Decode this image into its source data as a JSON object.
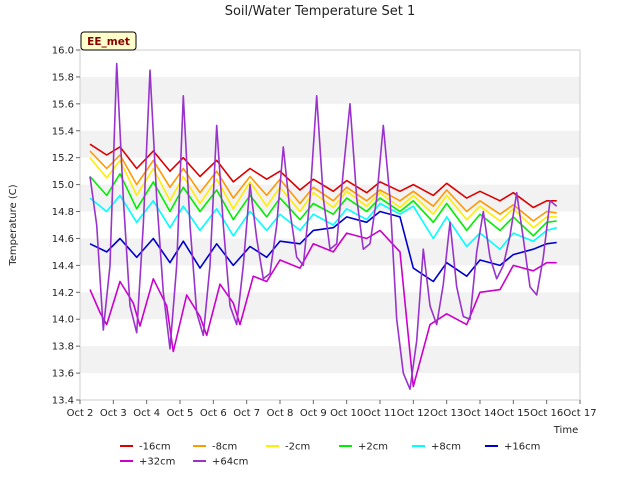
{
  "chart_data": {
    "type": "line",
    "title": "Soil/Water Temperature Set 1",
    "xlabel": "Time",
    "ylabel": "Temperature (C)",
    "annotation": "EE_met",
    "ylim": [
      13.4,
      16.0
    ],
    "xlim": [
      0,
      15
    ],
    "yticks": [
      13.4,
      13.6,
      13.8,
      14.0,
      14.2,
      14.4,
      14.6,
      14.8,
      15.0,
      15.2,
      15.4,
      15.6,
      15.8,
      16.0
    ],
    "xticks": [
      {
        "x": 0,
        "label": "Oct 2"
      },
      {
        "x": 1,
        "label": "Oct 3"
      },
      {
        "x": 2,
        "label": "Oct 4"
      },
      {
        "x": 3,
        "label": "Oct 5"
      },
      {
        "x": 4,
        "label": "Oct 6"
      },
      {
        "x": 5,
        "label": "Oct 7"
      },
      {
        "x": 6,
        "label": "Oct 8"
      },
      {
        "x": 7,
        "label": "Oct 9"
      },
      {
        "x": 8,
        "label": "Oct 10"
      },
      {
        "x": 9,
        "label": "Oct 11"
      },
      {
        "x": 10,
        "label": "Oct 12"
      },
      {
        "x": 11,
        "label": "Oct 13"
      },
      {
        "x": 12,
        "label": "Oct 14"
      },
      {
        "x": 13,
        "label": "Oct 15"
      },
      {
        "x": 14,
        "label": "Oct 16"
      },
      {
        "x": 15,
        "label": "Oct 17"
      }
    ],
    "grid": "horizontal bands",
    "legend_position": "bottom",
    "series": [
      {
        "name": "-16cm",
        "color": "#dd0000",
        "points": [
          [
            0.3,
            15.3
          ],
          [
            0.8,
            15.22
          ],
          [
            1.2,
            15.28
          ],
          [
            1.7,
            15.12
          ],
          [
            2.2,
            15.25
          ],
          [
            2.7,
            15.1
          ],
          [
            3.1,
            15.2
          ],
          [
            3.6,
            15.06
          ],
          [
            4.1,
            15.18
          ],
          [
            4.6,
            15.02
          ],
          [
            5.1,
            15.12
          ],
          [
            5.6,
            15.04
          ],
          [
            6.0,
            15.1
          ],
          [
            6.6,
            14.96
          ],
          [
            7.0,
            15.04
          ],
          [
            7.6,
            14.95
          ],
          [
            8.0,
            15.03
          ],
          [
            8.6,
            14.94
          ],
          [
            9.0,
            15.02
          ],
          [
            9.6,
            14.95
          ],
          [
            10.0,
            15.0
          ],
          [
            10.6,
            14.92
          ],
          [
            11.0,
            15.01
          ],
          [
            11.6,
            14.9
          ],
          [
            12.0,
            14.95
          ],
          [
            12.6,
            14.88
          ],
          [
            13.0,
            14.94
          ],
          [
            13.6,
            14.83
          ],
          [
            14.0,
            14.88
          ],
          [
            14.3,
            14.88
          ]
        ]
      },
      {
        "name": "-8cm",
        "color": "#ff9900",
        "points": [
          [
            0.3,
            15.25
          ],
          [
            0.8,
            15.12
          ],
          [
            1.2,
            15.22
          ],
          [
            1.7,
            15.0
          ],
          [
            2.2,
            15.18
          ],
          [
            2.7,
            14.98
          ],
          [
            3.1,
            15.12
          ],
          [
            3.6,
            14.94
          ],
          [
            4.1,
            15.1
          ],
          [
            4.6,
            14.9
          ],
          [
            5.1,
            15.06
          ],
          [
            5.6,
            14.92
          ],
          [
            6.0,
            15.04
          ],
          [
            6.6,
            14.86
          ],
          [
            7.0,
            14.98
          ],
          [
            7.6,
            14.88
          ],
          [
            8.0,
            14.98
          ],
          [
            8.6,
            14.88
          ],
          [
            9.0,
            14.96
          ],
          [
            9.6,
            14.88
          ],
          [
            10.0,
            14.95
          ],
          [
            10.6,
            14.84
          ],
          [
            11.0,
            14.96
          ],
          [
            11.6,
            14.8
          ],
          [
            12.0,
            14.88
          ],
          [
            12.6,
            14.78
          ],
          [
            13.0,
            14.85
          ],
          [
            13.6,
            14.73
          ],
          [
            14.0,
            14.8
          ],
          [
            14.3,
            14.79
          ]
        ]
      },
      {
        "name": "-2cm",
        "color": "#ffee00",
        "points": [
          [
            0.3,
            15.2
          ],
          [
            0.8,
            15.05
          ],
          [
            1.2,
            15.18
          ],
          [
            1.7,
            14.92
          ],
          [
            2.2,
            15.12
          ],
          [
            2.7,
            14.88
          ],
          [
            3.1,
            15.06
          ],
          [
            3.6,
            14.86
          ],
          [
            4.1,
            15.04
          ],
          [
            4.6,
            14.82
          ],
          [
            5.1,
            15.02
          ],
          [
            5.6,
            14.84
          ],
          [
            6.0,
            14.98
          ],
          [
            6.6,
            14.8
          ],
          [
            7.0,
            14.94
          ],
          [
            7.6,
            14.83
          ],
          [
            8.0,
            14.95
          ],
          [
            8.6,
            14.84
          ],
          [
            9.0,
            14.94
          ],
          [
            9.6,
            14.83
          ],
          [
            10.0,
            14.92
          ],
          [
            10.6,
            14.78
          ],
          [
            11.0,
            14.92
          ],
          [
            11.6,
            14.74
          ],
          [
            12.0,
            14.84
          ],
          [
            12.6,
            14.73
          ],
          [
            13.0,
            14.82
          ],
          [
            13.6,
            14.68
          ],
          [
            14.0,
            14.76
          ],
          [
            14.3,
            14.76
          ]
        ]
      },
      {
        "name": "+2cm",
        "color": "#00ee00",
        "points": [
          [
            0.3,
            15.06
          ],
          [
            0.8,
            14.92
          ],
          [
            1.2,
            15.08
          ],
          [
            1.7,
            14.82
          ],
          [
            2.2,
            15.02
          ],
          [
            2.7,
            14.8
          ],
          [
            3.1,
            14.98
          ],
          [
            3.6,
            14.8
          ],
          [
            4.1,
            14.96
          ],
          [
            4.6,
            14.74
          ],
          [
            5.1,
            14.92
          ],
          [
            5.6,
            14.76
          ],
          [
            6.0,
            14.9
          ],
          [
            6.6,
            14.74
          ],
          [
            7.0,
            14.86
          ],
          [
            7.6,
            14.78
          ],
          [
            8.0,
            14.9
          ],
          [
            8.6,
            14.8
          ],
          [
            9.0,
            14.9
          ],
          [
            9.6,
            14.8
          ],
          [
            10.0,
            14.88
          ],
          [
            10.6,
            14.72
          ],
          [
            11.0,
            14.86
          ],
          [
            11.6,
            14.66
          ],
          [
            12.0,
            14.78
          ],
          [
            12.6,
            14.66
          ],
          [
            13.0,
            14.76
          ],
          [
            13.6,
            14.62
          ],
          [
            14.0,
            14.72
          ],
          [
            14.3,
            14.73
          ]
        ]
      },
      {
        "name": "+8cm",
        "color": "#00ffff",
        "points": [
          [
            0.3,
            14.9
          ],
          [
            0.8,
            14.8
          ],
          [
            1.2,
            14.92
          ],
          [
            1.7,
            14.72
          ],
          [
            2.2,
            14.88
          ],
          [
            2.7,
            14.68
          ],
          [
            3.1,
            14.84
          ],
          [
            3.6,
            14.66
          ],
          [
            4.1,
            14.82
          ],
          [
            4.6,
            14.62
          ],
          [
            5.1,
            14.8
          ],
          [
            5.6,
            14.66
          ],
          [
            6.0,
            14.78
          ],
          [
            6.6,
            14.66
          ],
          [
            7.0,
            14.78
          ],
          [
            7.6,
            14.7
          ],
          [
            8.0,
            14.82
          ],
          [
            8.6,
            14.74
          ],
          [
            9.0,
            14.86
          ],
          [
            9.6,
            14.78
          ],
          [
            10.0,
            14.84
          ],
          [
            10.6,
            14.6
          ],
          [
            11.0,
            14.76
          ],
          [
            11.6,
            14.54
          ],
          [
            12.0,
            14.64
          ],
          [
            12.6,
            14.52
          ],
          [
            13.0,
            14.64
          ],
          [
            13.6,
            14.58
          ],
          [
            14.0,
            14.66
          ],
          [
            14.3,
            14.68
          ]
        ]
      },
      {
        "name": "+16cm",
        "color": "#0000cc",
        "points": [
          [
            0.3,
            14.56
          ],
          [
            0.8,
            14.5
          ],
          [
            1.2,
            14.6
          ],
          [
            1.7,
            14.46
          ],
          [
            2.2,
            14.6
          ],
          [
            2.7,
            14.42
          ],
          [
            3.1,
            14.58
          ],
          [
            3.6,
            14.38
          ],
          [
            4.1,
            14.56
          ],
          [
            4.6,
            14.4
          ],
          [
            5.1,
            14.54
          ],
          [
            5.6,
            14.46
          ],
          [
            6.0,
            14.58
          ],
          [
            6.6,
            14.56
          ],
          [
            7.0,
            14.66
          ],
          [
            7.6,
            14.68
          ],
          [
            8.0,
            14.76
          ],
          [
            8.6,
            14.72
          ],
          [
            9.0,
            14.8
          ],
          [
            9.6,
            14.76
          ],
          [
            10.0,
            14.38
          ],
          [
            10.6,
            14.28
          ],
          [
            11.0,
            14.42
          ],
          [
            11.6,
            14.32
          ],
          [
            12.0,
            14.44
          ],
          [
            12.6,
            14.4
          ],
          [
            13.0,
            14.48
          ],
          [
            13.6,
            14.52
          ],
          [
            14.0,
            14.56
          ],
          [
            14.3,
            14.57
          ]
        ]
      },
      {
        "name": "+32cm",
        "color": "#cc00cc",
        "points": [
          [
            0.3,
            14.22
          ],
          [
            0.6,
            14.05
          ],
          [
            0.8,
            13.96
          ],
          [
            1.2,
            14.28
          ],
          [
            1.6,
            14.12
          ],
          [
            1.8,
            13.95
          ],
          [
            2.2,
            14.3
          ],
          [
            2.6,
            14.1
          ],
          [
            2.8,
            13.76
          ],
          [
            3.2,
            14.18
          ],
          [
            3.6,
            14.02
          ],
          [
            3.8,
            13.88
          ],
          [
            4.2,
            14.26
          ],
          [
            4.6,
            14.12
          ],
          [
            4.8,
            13.96
          ],
          [
            5.2,
            14.32
          ],
          [
            5.6,
            14.28
          ],
          [
            6.0,
            14.44
          ],
          [
            6.6,
            14.38
          ],
          [
            7.0,
            14.56
          ],
          [
            7.6,
            14.5
          ],
          [
            8.0,
            14.64
          ],
          [
            8.6,
            14.6
          ],
          [
            9.0,
            14.66
          ],
          [
            9.6,
            14.5
          ],
          [
            10.0,
            13.5
          ],
          [
            10.5,
            13.96
          ],
          [
            11.0,
            14.04
          ],
          [
            11.6,
            13.96
          ],
          [
            12.0,
            14.2
          ],
          [
            12.6,
            14.22
          ],
          [
            13.0,
            14.4
          ],
          [
            13.6,
            14.36
          ],
          [
            14.0,
            14.42
          ],
          [
            14.3,
            14.42
          ]
        ]
      },
      {
        "name": "+64cm",
        "color": "#9933cc",
        "points": [
          [
            0.3,
            15.06
          ],
          [
            0.5,
            14.7
          ],
          [
            0.7,
            13.92
          ],
          [
            0.9,
            14.4
          ],
          [
            1.1,
            15.9
          ],
          [
            1.3,
            14.9
          ],
          [
            1.5,
            14.1
          ],
          [
            1.7,
            13.9
          ],
          [
            1.9,
            14.7
          ],
          [
            2.1,
            15.85
          ],
          [
            2.3,
            14.9
          ],
          [
            2.5,
            14.2
          ],
          [
            2.7,
            13.78
          ],
          [
            2.9,
            14.4
          ],
          [
            3.1,
            15.66
          ],
          [
            3.3,
            14.7
          ],
          [
            3.5,
            14.05
          ],
          [
            3.7,
            13.88
          ],
          [
            3.9,
            14.4
          ],
          [
            4.1,
            15.44
          ],
          [
            4.3,
            14.7
          ],
          [
            4.5,
            14.1
          ],
          [
            4.7,
            13.96
          ],
          [
            4.9,
            14.4
          ],
          [
            5.1,
            15.0
          ],
          [
            5.3,
            14.6
          ],
          [
            5.5,
            14.3
          ],
          [
            5.7,
            14.34
          ],
          [
            5.9,
            14.7
          ],
          [
            6.1,
            15.28
          ],
          [
            6.3,
            14.8
          ],
          [
            6.5,
            14.46
          ],
          [
            6.7,
            14.4
          ],
          [
            6.9,
            14.9
          ],
          [
            7.1,
            15.66
          ],
          [
            7.3,
            14.9
          ],
          [
            7.5,
            14.52
          ],
          [
            7.7,
            14.56
          ],
          [
            7.9,
            15.1
          ],
          [
            8.1,
            15.6
          ],
          [
            8.3,
            14.9
          ],
          [
            8.5,
            14.52
          ],
          [
            8.7,
            14.56
          ],
          [
            8.9,
            14.9
          ],
          [
            9.1,
            15.44
          ],
          [
            9.3,
            14.9
          ],
          [
            9.5,
            14.0
          ],
          [
            9.7,
            13.6
          ],
          [
            9.9,
            13.48
          ],
          [
            10.1,
            13.84
          ],
          [
            10.3,
            14.52
          ],
          [
            10.5,
            14.1
          ],
          [
            10.7,
            13.96
          ],
          [
            10.9,
            14.26
          ],
          [
            11.1,
            14.72
          ],
          [
            11.3,
            14.24
          ],
          [
            11.5,
            14.02
          ],
          [
            11.7,
            14.0
          ],
          [
            11.9,
            14.5
          ],
          [
            12.1,
            14.8
          ],
          [
            12.3,
            14.46
          ],
          [
            12.5,
            14.3
          ],
          [
            12.7,
            14.4
          ],
          [
            12.9,
            14.62
          ],
          [
            13.1,
            14.94
          ],
          [
            13.3,
            14.6
          ],
          [
            13.5,
            14.24
          ],
          [
            13.7,
            14.18
          ],
          [
            13.9,
            14.46
          ],
          [
            14.1,
            14.88
          ],
          [
            14.3,
            14.84
          ]
        ]
      }
    ]
  }
}
